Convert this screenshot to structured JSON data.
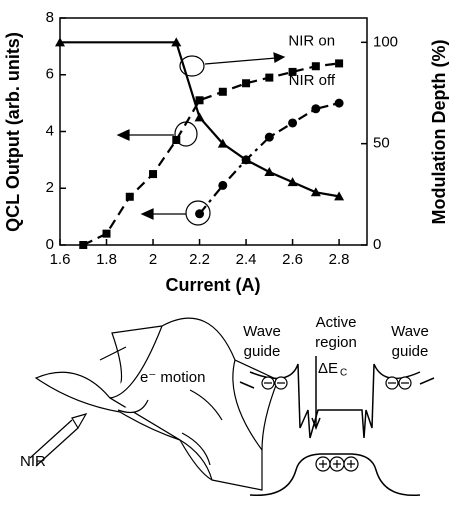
{
  "chart_data": {
    "type": "line",
    "x_label": "Current (A)",
    "y_label": "QCL Output (arb. units)",
    "y2_label": "Modulation Depth (%)",
    "xlim": [
      1.6,
      2.92
    ],
    "xticks": [
      1.6,
      1.8,
      2.0,
      2.2,
      2.4,
      2.6,
      2.8
    ],
    "ylim": [
      0,
      8
    ],
    "yticks": [
      0,
      2,
      4,
      6,
      8
    ],
    "y2lim": [
      0,
      112
    ],
    "y2ticks": [
      0,
      50,
      100
    ],
    "series": [
      {
        "name": "NIR on",
        "color": "#000000",
        "marker": "square",
        "dash": "dashed",
        "x": [
          1.7,
          1.8,
          1.9,
          2.0,
          2.1,
          2.2,
          2.3,
          2.4,
          2.5,
          2.6,
          2.7,
          2.8
        ],
        "values": [
          0,
          0.4,
          1.7,
          2.5,
          3.7,
          5.1,
          5.4,
          5.7,
          5.9,
          6.1,
          6.3,
          6.4
        ]
      },
      {
        "name": "NIR off",
        "color": "#000000",
        "marker": "circle",
        "dash": "dashdot",
        "x": [
          2.2,
          2.3,
          2.4,
          2.5,
          2.6,
          2.7,
          2.8
        ],
        "values": [
          1.1,
          2.1,
          3.0,
          3.8,
          4.3,
          4.8,
          5.0
        ]
      },
      {
        "color": "#000000",
        "marker": "triangle",
        "dash": "solid",
        "axis": "y2",
        "x": [
          1.6,
          2.1,
          2.2,
          2.3,
          2.4,
          2.5,
          2.6,
          2.7,
          2.8
        ],
        "values": [
          100,
          100,
          63,
          50,
          42,
          36,
          31,
          26,
          24
        ]
      }
    ]
  },
  "diagram": {
    "waveguide_left": [
      "Wave",
      "guide"
    ],
    "active_region": [
      "Active",
      "region"
    ],
    "waveguide_right": [
      "Wave",
      "guide"
    ],
    "delta_e": "ΔE",
    "delta_e_sub": "C",
    "electron_motion": "e⁻ motion",
    "nir": "NIR"
  }
}
